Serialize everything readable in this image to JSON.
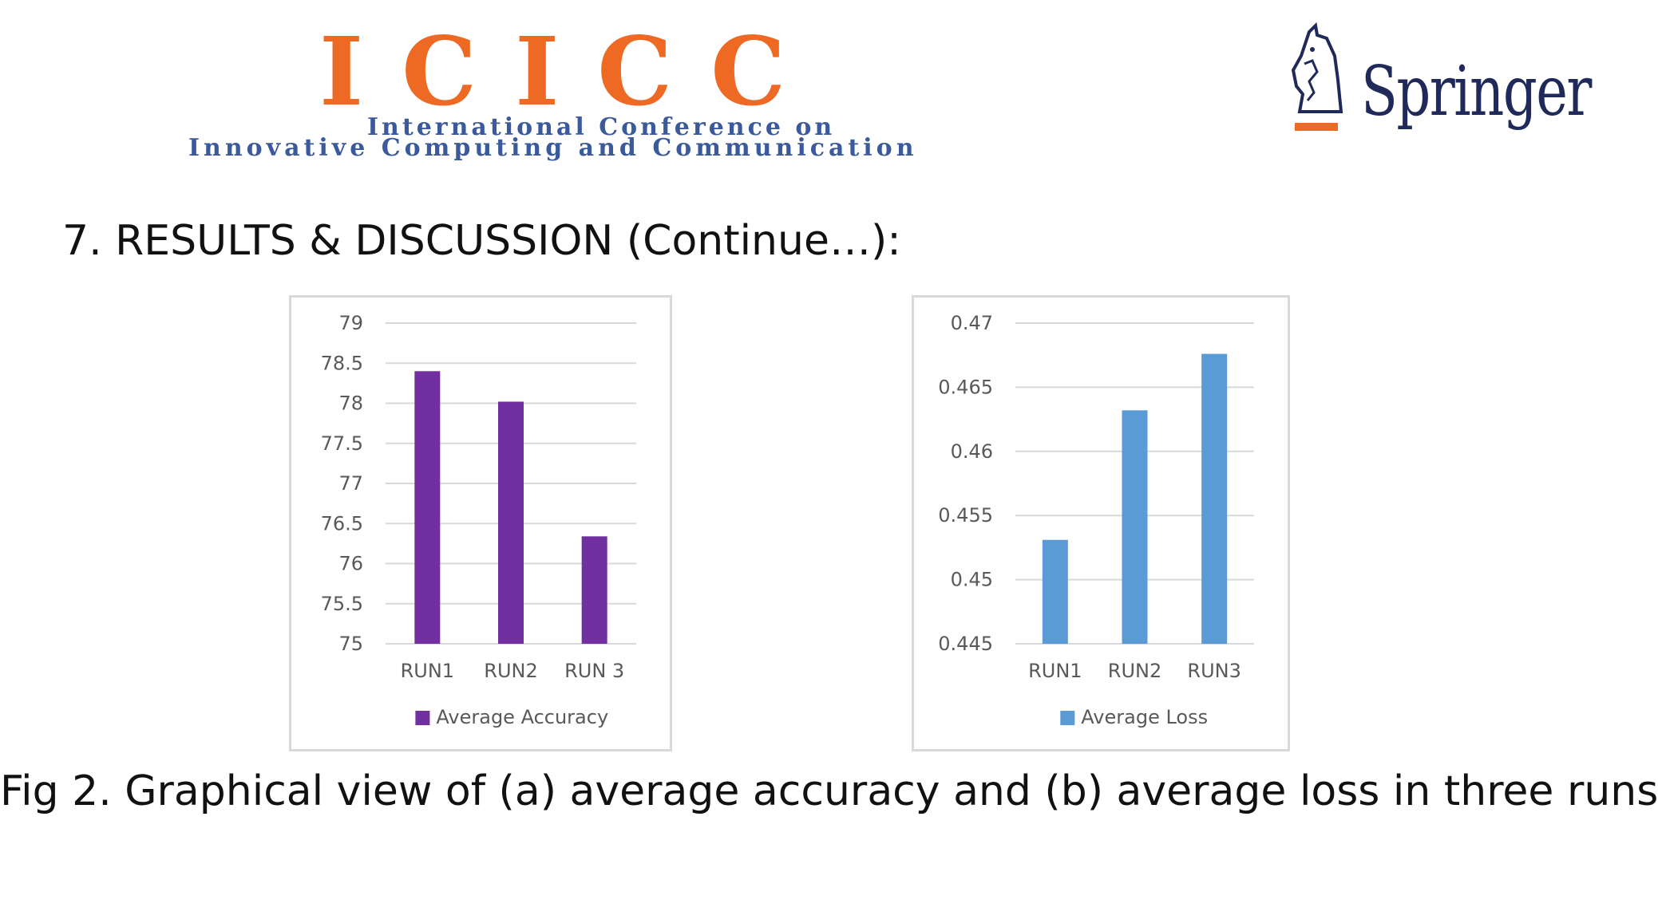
{
  "header": {
    "logo_left": {
      "main": "ICICC",
      "sub_line1": "International Conference on",
      "sub_line2": "Innovative Computing and Communication"
    },
    "logo_right": {
      "text": "Springer"
    }
  },
  "slide": {
    "heading": "7. RESULTS & DISCUSSION (Continue…):",
    "caption": "Fig 2. Graphical view of (a) average accuracy and (b) average loss in three runs"
  },
  "colors": {
    "accuracy_bar": "#7030a0",
    "loss_bar": "#5b9bd5",
    "icicc_orange": "#ee6a24",
    "icicc_blue": "#3a5a9c"
  },
  "chart_data": [
    {
      "type": "bar",
      "categories": [
        "RUN1",
        "RUN2",
        "RUN 3"
      ],
      "series": [
        {
          "name": "Average Accuracy",
          "values": [
            78.4,
            78.02,
            76.34
          ]
        }
      ],
      "yticks": [
        "79",
        "78.5",
        "78",
        "77.5",
        "77",
        "76.5",
        "76",
        "75.5",
        "75"
      ],
      "ylim": [
        75,
        79
      ],
      "grid": true,
      "legend": "bottom"
    },
    {
      "type": "bar",
      "categories": [
        "RUN1",
        "RUN2",
        "RUN3"
      ],
      "series": [
        {
          "name": "Average Loss",
          "values": [
            0.4531,
            0.4632,
            0.4676
          ]
        }
      ],
      "yticks": [
        "0.47",
        "0.465",
        "0.46",
        "0.455",
        "0.45",
        "0.445"
      ],
      "ylim": [
        0.445,
        0.47
      ],
      "grid": true,
      "legend": "bottom"
    }
  ]
}
